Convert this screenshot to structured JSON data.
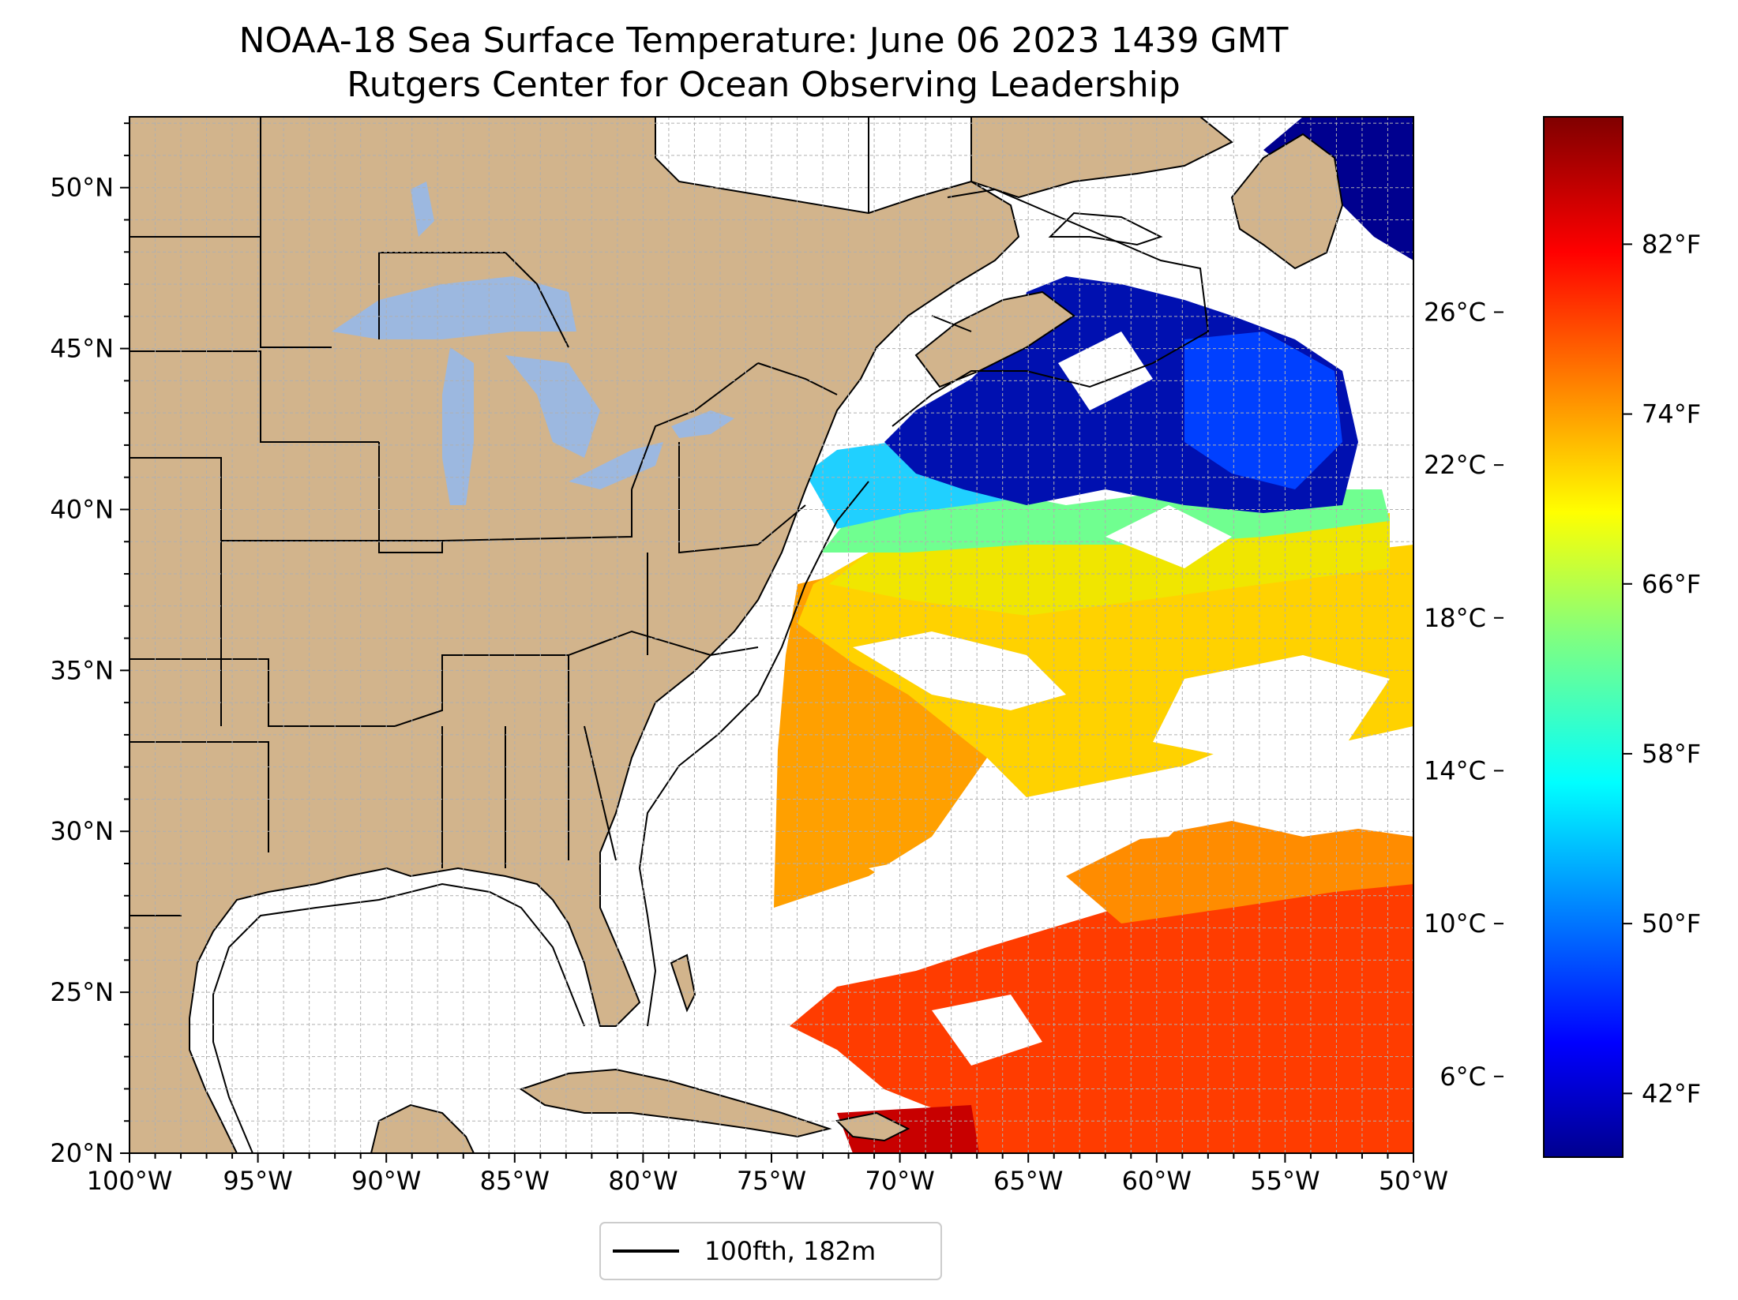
{
  "map": {
    "title_line1": "NOAA-18 Sea Surface Temperature: June 06 2023 1439 GMT",
    "title_line2": "Rutgers Center for Ocean Observing Leadership",
    "extent": {
      "lon_min": -100,
      "lon_max": -50,
      "lat_min": 20,
      "lat_max": 52.2
    },
    "lon_ticks": [
      {
        "value": -100,
        "label": "100°W"
      },
      {
        "value": -95,
        "label": "95°W"
      },
      {
        "value": -90,
        "label": "90°W"
      },
      {
        "value": -85,
        "label": "85°W"
      },
      {
        "value": -80,
        "label": "80°W"
      },
      {
        "value": -75,
        "label": "75°W"
      },
      {
        "value": -70,
        "label": "70°W"
      },
      {
        "value": -65,
        "label": "65°W"
      },
      {
        "value": -60,
        "label": "60°W"
      },
      {
        "value": -55,
        "label": "55°W"
      },
      {
        "value": -50,
        "label": "50°W"
      }
    ],
    "lat_ticks": [
      {
        "value": 20,
        "label": "20°N"
      },
      {
        "value": 25,
        "label": "25°N"
      },
      {
        "value": 30,
        "label": "30°N"
      },
      {
        "value": 35,
        "label": "35°N"
      },
      {
        "value": 40,
        "label": "40°N"
      },
      {
        "value": 45,
        "label": "45°N"
      },
      {
        "value": 50,
        "label": "50°N"
      }
    ],
    "grid": "dashed, 1 degree",
    "colors": {
      "land": "#d2b48c",
      "lakes": "#9cb8e0",
      "no_data": "#ffffff",
      "borders": "#000000",
      "grid": "#b0b0b0"
    },
    "legend": {
      "label": "100fth, 182m",
      "placement": "bottom-center"
    }
  },
  "colorbar": {
    "colormap": "jet",
    "range_f": [
      39,
      88
    ],
    "celsius_ticks": [
      {
        "value": 6,
        "label": "6°C"
      },
      {
        "value": 10,
        "label": "10°C"
      },
      {
        "value": 14,
        "label": "14°C"
      },
      {
        "value": 18,
        "label": "18°C"
      },
      {
        "value": 22,
        "label": "22°C"
      },
      {
        "value": 26,
        "label": "26°C"
      }
    ],
    "fahrenheit_ticks": [
      {
        "value": 42,
        "label": "42°F"
      },
      {
        "value": 50,
        "label": "50°F"
      },
      {
        "value": 58,
        "label": "58°F"
      },
      {
        "value": 66,
        "label": "66°F"
      },
      {
        "value": 74,
        "label": "74°F"
      },
      {
        "value": 82,
        "label": "82°F"
      }
    ]
  }
}
